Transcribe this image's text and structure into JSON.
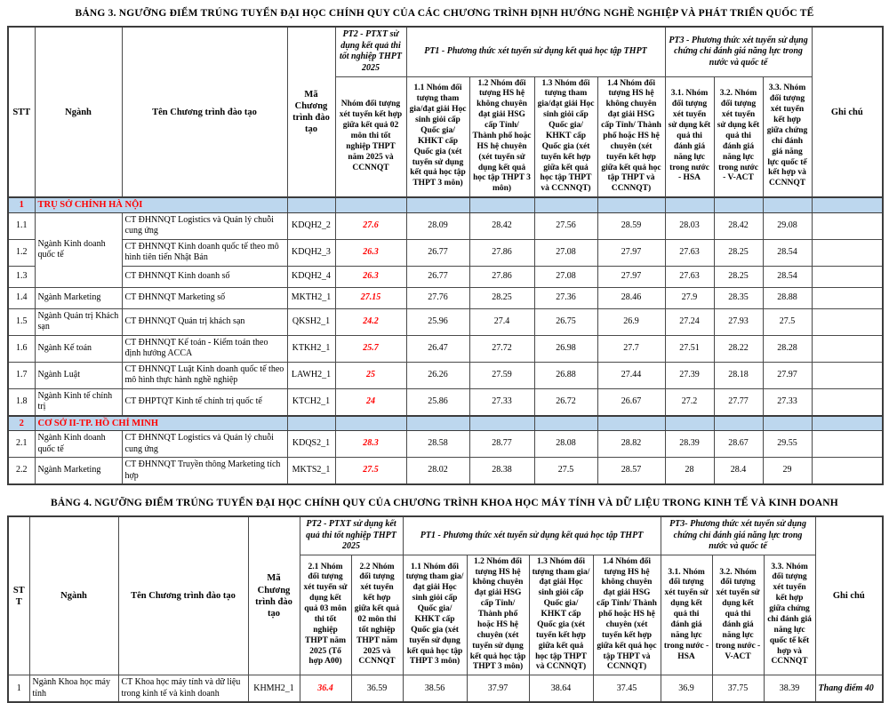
{
  "table3": {
    "title": "BẢNG 3. NGƯỠNG ĐIỂM TRÚNG TUYỂN ĐẠI HỌC CHÍNH QUY CỦA CÁC CHƯƠNG TRÌNH ĐỊNH HƯỚNG NGHỀ NGHIỆP VÀ PHÁT TRIỂN QUỐC TẾ",
    "header": {
      "stt": "STT",
      "nganh": "Ngành",
      "ten": "Tên Chương trình đào tạo",
      "ma": "Mã Chương trình đào tạo",
      "pt2_group": "PT2 - PTXT sử dụng kết quả thi tốt nghiệp THPT 2025",
      "pt1_group": "PT1 - Phương thức xét tuyển sử dụng kết quả học tập THPT",
      "pt3_group": "PT3 - Phương thức xét tuyển sử dụng chứng chỉ đánh giá năng lực trong nước và quốc tế",
      "ghichu": "Ghi chú",
      "subcols": [
        "Nhóm đối tượng xét tuyển kết hợp giữa kết quả 02 môn thi tốt nghiệp THPT năm 2025 và CCNNQT",
        "1.1 Nhóm đối tượng tham gia/đạt giải Học sinh giỏi cấp Quốc gia/ KHKT cấp Quốc gia (xét tuyển sử dụng kết quả học tập THPT 3 môn)",
        "1.2 Nhóm đối tượng HS hệ không chuyên đạt giải HSG cấp Tỉnh/ Thành phố hoặc HS hệ chuyên (xét tuyển sử dụng kết quả học tập THPT 3 môn)",
        "1.3 Nhóm đối tượng tham gia/đạt giải Học sinh giỏi cấp Quốc gia/ KHKT cấp Quốc gia (xét tuyển kết hợp giữa kết quả học tập THPT và CCNNQT)",
        "1.4 Nhóm đối tượng HS hệ không chuyên đạt giải HSG cấp Tỉnh/ Thành phố hoặc HS hệ chuyên (xét tuyển kết hợp giữa kết quả học tập THPT và CCNNQT)",
        "3.1. Nhóm đối tượng xét tuyển sử dụng kết quả thi đánh giá năng lực trong nước - HSA",
        "3.2. Nhóm đối tượng xét tuyển sử dụng kết quả thi đánh giá năng lực trong nước - V-ACT",
        "3.3. Nhóm đối tượng xét tuyển kết hợp giữa chứng chỉ đánh giá năng lực quốc tế kết hợp và CCNNQT"
      ]
    },
    "sections": [
      {
        "stt": "1",
        "title": "TRỤ SỞ CHÍNH HÀ NỘI",
        "rows": [
          {
            "stt": "1.1",
            "nganh": "Ngành Kinh doanh quốc tế",
            "nganh_rowspan": 3,
            "ten": "CT ĐHNNQT Logistics và Quản lý chuỗi cung ứng",
            "ma": "KDQH2_2",
            "pt2": "27.6",
            "vals": [
              "28.09",
              "28.42",
              "27.56",
              "28.59",
              "28.03",
              "28.42",
              "29.08"
            ],
            "note": ""
          },
          {
            "stt": "1.2",
            "nganh": null,
            "ten": "CT ĐHNNQT Kinh doanh quốc tế theo mô hình tiên tiến Nhật Bản",
            "ma": "KDQH2_3",
            "pt2": "26.3",
            "vals": [
              "26.77",
              "27.86",
              "27.08",
              "27.97",
              "27.63",
              "28.25",
              "28.54"
            ],
            "note": ""
          },
          {
            "stt": "1.3",
            "nganh": null,
            "ten": "CT ĐHNNQT Kinh doanh số",
            "ma": "KDQH2_4",
            "pt2": "26.3",
            "vals": [
              "26.77",
              "27.86",
              "27.08",
              "27.97",
              "27.63",
              "28.25",
              "28.54"
            ],
            "note": ""
          },
          {
            "stt": "1.4",
            "nganh": "Ngành Marketing",
            "ten": "CT ĐHNNQT Marketing số",
            "ma": "MKTH2_1",
            "pt2": "27.15",
            "vals": [
              "27.76",
              "28.25",
              "27.36",
              "28.46",
              "27.9",
              "28.35",
              "28.88"
            ],
            "note": ""
          },
          {
            "stt": "1.5",
            "nganh": "Ngành Quản trị Khách sạn",
            "ten": "CT ĐHNNQT Quản trị khách sạn",
            "ma": "QKSH2_1",
            "pt2": "24.2",
            "vals": [
              "25.96",
              "27.4",
              "26.75",
              "26.9",
              "27.24",
              "27.93",
              "27.5"
            ],
            "note": ""
          },
          {
            "stt": "1.6",
            "nganh": "Ngành Kế toán",
            "ten": "CT ĐHNNQT Kế toán - Kiểm toán theo định hướng ACCA",
            "ma": "KTKH2_1",
            "pt2": "25.7",
            "vals": [
              "26.47",
              "27.72",
              "26.98",
              "27.7",
              "27.51",
              "28.22",
              "28.28"
            ],
            "note": ""
          },
          {
            "stt": "1.7",
            "nganh": "Ngành Luật",
            "ten": "CT ĐHNNQT Luật Kinh doanh quốc tế theo mô hình thực hành nghề nghiệp",
            "ma": "LAWH2_1",
            "pt2": "25",
            "vals": [
              "26.26",
              "27.59",
              "26.88",
              "27.44",
              "27.39",
              "28.18",
              "27.97"
            ],
            "note": ""
          },
          {
            "stt": "1.8",
            "nganh": "Ngành Kinh tế chính trị",
            "ten": "CT ĐHPTQT Kinh tế chính trị quốc tế",
            "ma": "KTCH2_1",
            "pt2": "24",
            "vals": [
              "25.86",
              "27.33",
              "26.72",
              "26.67",
              "27.2",
              "27.77",
              "27.33"
            ],
            "note": ""
          }
        ]
      },
      {
        "stt": "2",
        "title": "CƠ SỞ II-TP. HỒ CHÍ MINH",
        "rows": [
          {
            "stt": "2.1",
            "nganh": "Ngành Kinh doanh quốc tế",
            "ten": "CT ĐHNNQT Logistics và Quản lý chuỗi cung ứng",
            "ma": "KDQS2_1",
            "pt2": "28.3",
            "vals": [
              "28.58",
              "28.77",
              "28.08",
              "28.82",
              "28.39",
              "28.67",
              "29.55"
            ],
            "note": ""
          },
          {
            "stt": "2.2",
            "nganh": "Ngành Marketing",
            "ten": "CT ĐHNNQT Truyền thông Marketing tích hợp",
            "ma": "MKTS2_1",
            "pt2": "27.5",
            "vals": [
              "28.02",
              "28.38",
              "27.5",
              "28.57",
              "28",
              "28.4",
              "29"
            ],
            "note": ""
          }
        ]
      }
    ]
  },
  "table4": {
    "title": "BẢNG 4. NGƯỠNG ĐIỂM TRÚNG TUYỂN ĐẠI HỌC CHÍNH QUY CỦA CHƯƠNG TRÌNH KHOA HỌC MÁY TÍNH VÀ DỮ LIỆU TRONG KINH TẾ VÀ KINH DOANH",
    "header": {
      "stt": "STT",
      "nganh": "Ngành",
      "ten": "Tên Chương trình đào tạo",
      "ma": "Mã Chương trình đào tạo",
      "pt2_group": "PT2 - PTXT sử dụng kết quả thi tốt nghiệp THPT 2025",
      "pt1_group": "PT1 - Phương thức xét tuyển sử dụng kết quả học tập THPT",
      "pt3_group": "PT3- Phương thức xét tuyển sử dụng chứng chỉ đánh giá năng lực trong nước và quốc tế",
      "ghichu": "Ghi chú",
      "subcols": [
        "2.1 Nhóm đối tượng xét tuyển sử dụng kết quả 03 môn thi tốt nghiệp THPT năm 2025 (Tổ hợp A00)",
        "2.2 Nhóm đối tượng xét tuyển kết hợp giữa kết quả 02 môn thi tốt nghiệp THPT năm 2025 và CCNNQT",
        "1.1 Nhóm đối tượng tham gia/đạt giải Học sinh giỏi cấp Quốc gia/ KHKT cấp Quốc gia (xét tuyển sử dụng kết quả học tập THPT 3 môn)",
        "1.2 Nhóm đối tượng HS hệ không chuyên đạt giải HSG cấp Tỉnh/ Thành phố hoặc HS hệ chuyên (xét tuyển sử dụng kết quả học tập THPT 3 môn)",
        "1.3 Nhóm đối tượng tham gia/đạt giải Học sinh giỏi cấp Quốc gia/ KHKT cấp Quốc gia (xét tuyển kết hợp giữa kết quả học tập THPT và CCNNQT)",
        "1.4 Nhóm đối tượng HS hệ không chuyên đạt giải HSG cấp Tỉnh/ Thành phố hoặc HS hệ chuyên (xét tuyển kết hợp giữa kết quả học tập THPT và CCNNQT)",
        "3.1. Nhóm đối tượng xét tuyển sử dụng kết quả thi đánh giá năng lực trong nước - HSA",
        "3.2. Nhóm đối tượng xét tuyển sử dụng kết quả thi đánh giá năng lực trong nước - V-ACT",
        "3.3. Nhóm đối tượng xét tuyển kết hợp giữa chứng chỉ đánh giá năng lực quốc tế kết hợp và CCNNQT"
      ]
    },
    "rows": [
      {
        "stt": "1",
        "nganh": "Ngành Khoa học máy tính",
        "ten": "CT Khoa học máy tính và dữ liệu trong kinh tế và kinh doanh",
        "ma": "KHMH2_1",
        "pt2": "36.4",
        "vals": [
          "36.59",
          "38.56",
          "37.97",
          "38.64",
          "37.45",
          "36.9",
          "37.75",
          "38.39"
        ],
        "note": "Thang điểm 40"
      }
    ]
  },
  "colors": {
    "section_bg": "#BDD7EE",
    "accent_red": "#FF0000",
    "border": "#4A4A4A"
  }
}
